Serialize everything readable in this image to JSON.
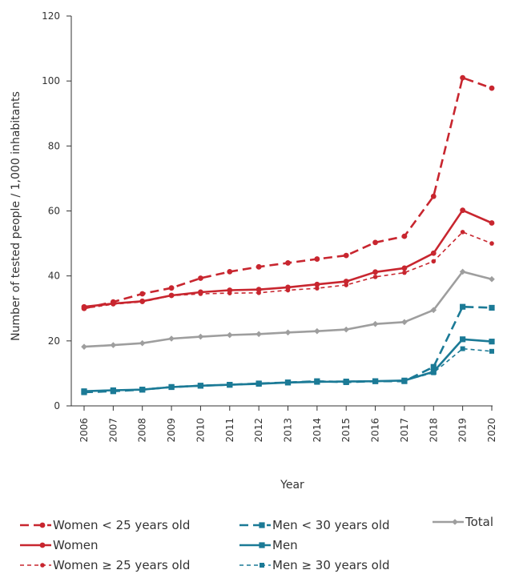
{
  "chart_data": {
    "type": "line",
    "xlabel": "Year",
    "ylabel": "Number of tested people / 1,000 inhabitants",
    "ylim": [
      0,
      120
    ],
    "yticks": [
      0,
      20,
      40,
      60,
      80,
      100,
      120
    ],
    "x": [
      "2006",
      "2007",
      "2008",
      "2009",
      "2010",
      "2011",
      "2012",
      "2013",
      "2014",
      "2015",
      "2016",
      "2017",
      "2018",
      "2019",
      "2020"
    ],
    "grid": false,
    "legend_position": "bottom",
    "series": [
      {
        "name": "Women < 25 years old",
        "color": "#c8262f",
        "dash": "dashed",
        "width": "thick",
        "marker": "circle",
        "values": [
          30.0,
          32.0,
          34.5,
          36.3,
          39.3,
          41.3,
          42.8,
          44.0,
          45.2,
          46.3,
          50.3,
          52.2,
          64.5,
          101.0,
          97.8
        ]
      },
      {
        "name": "Women",
        "color": "#c8262f",
        "dash": "solid",
        "width": "thick",
        "marker": "circle",
        "values": [
          30.5,
          31.5,
          32.2,
          34.0,
          35.0,
          35.6,
          35.8,
          36.5,
          37.4,
          38.3,
          41.2,
          42.4,
          47.0,
          60.2,
          56.3
        ]
      },
      {
        "name": "Women ≥ 25 years old",
        "color": "#c8262f",
        "dash": "dashed",
        "width": "thin",
        "marker": "circle",
        "values": [
          30.0,
          31.3,
          32.0,
          33.9,
          34.5,
          34.7,
          34.8,
          35.6,
          36.2,
          37.2,
          39.7,
          41.0,
          44.5,
          53.5,
          50.0
        ]
      },
      {
        "name": "Men < 30 years old",
        "color": "#1b7a96",
        "dash": "dashed",
        "width": "thick",
        "marker": "square",
        "values": [
          4.2,
          4.5,
          5.0,
          5.8,
          6.2,
          6.5,
          6.9,
          7.2,
          7.6,
          7.3,
          7.6,
          7.6,
          12.0,
          30.5,
          30.2
        ]
      },
      {
        "name": "Men",
        "color": "#1b7a96",
        "dash": "solid",
        "width": "thick",
        "marker": "square",
        "values": [
          4.5,
          4.8,
          5.0,
          5.8,
          6.2,
          6.5,
          6.8,
          7.2,
          7.4,
          7.5,
          7.6,
          7.8,
          10.5,
          20.5,
          19.8
        ]
      },
      {
        "name": "Men ≥ 30 years old",
        "color": "#1b7a96",
        "dash": "dashed",
        "width": "thin",
        "marker": "square",
        "values": [
          4.5,
          4.8,
          5.1,
          5.9,
          6.1,
          6.5,
          6.8,
          7.3,
          7.6,
          7.6,
          7.7,
          7.8,
          10.2,
          17.6,
          16.8
        ]
      },
      {
        "name": "Total",
        "color": "#9e9e9e",
        "dash": "solid",
        "width": "thick",
        "marker": "diamond",
        "values": [
          18.2,
          18.7,
          19.3,
          20.7,
          21.3,
          21.8,
          22.1,
          22.6,
          23.0,
          23.5,
          25.2,
          25.8,
          29.5,
          41.3,
          39.0
        ]
      }
    ]
  }
}
